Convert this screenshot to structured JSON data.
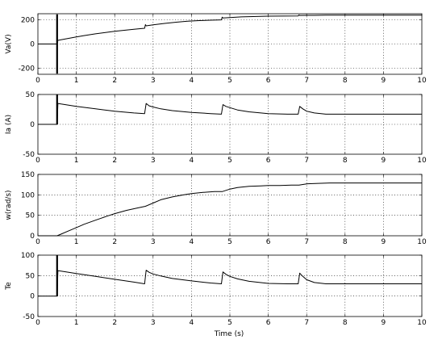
{
  "chart_data": [
    {
      "type": "line",
      "title": "",
      "xlabel": "",
      "ylabel": "Va(V)",
      "xlim": [
        0,
        10
      ],
      "ylim": [
        -250,
        250
      ],
      "xticks": [
        0,
        1,
        2,
        3,
        4,
        5,
        6,
        7,
        8,
        9,
        10
      ],
      "yticks": [
        -200,
        0,
        200
      ],
      "grid": true,
      "series": [
        {
          "x": [
            0,
            0.5,
            0.52,
            0.6,
            0.8,
            1.0,
            1.2,
            1.5,
            1.8,
            2.0,
            2.2,
            2.5,
            2.78,
            2.8,
            2.82,
            3.0,
            3.3,
            3.6,
            3.9,
            4.2,
            4.5,
            4.78,
            4.8,
            4.82,
            5.0,
            5.3,
            5.6,
            6.0,
            6.4,
            6.78,
            6.8,
            6.82,
            7.2,
            7.5,
            8.0,
            8.5,
            9.0,
            9.5,
            10
          ],
          "y": [
            0,
            0,
            30,
            35,
            47,
            58,
            69,
            84,
            97,
            105,
            112,
            122,
            130,
            160,
            150,
            158,
            170,
            180,
            188,
            193,
            197,
            199,
            222,
            215,
            218,
            224,
            227,
            230,
            231,
            232,
            240,
            236,
            237,
            238,
            238,
            238,
            238,
            238,
            238
          ],
          "spikes": [
            {
              "x": 0.5,
              "min": -245,
              "max": 245
            }
          ]
        }
      ]
    },
    {
      "type": "line",
      "title": "",
      "xlabel": "",
      "ylabel": "Ia (A)",
      "xlim": [
        0,
        10
      ],
      "ylim": [
        -50,
        50
      ],
      "xticks": [
        0,
        1,
        2,
        3,
        4,
        5,
        6,
        7,
        8,
        9,
        10
      ],
      "yticks": [
        -50,
        0,
        50
      ],
      "grid": true,
      "series": [
        {
          "x": [
            0,
            0.5,
            0.52,
            0.6,
            0.8,
            1.0,
            1.5,
            2.0,
            2.5,
            2.78,
            2.82,
            2.9,
            3.0,
            3.2,
            3.5,
            4.0,
            4.5,
            4.78,
            4.82,
            4.9,
            5.0,
            5.2,
            5.5,
            6.0,
            6.5,
            6.78,
            6.82,
            6.9,
            7.0,
            7.2,
            7.5,
            8.0,
            9.0,
            10
          ],
          "y": [
            0,
            0,
            35,
            34,
            32,
            30,
            26,
            22,
            19,
            18,
            35,
            31,
            29,
            26,
            23,
            20,
            18,
            17,
            33,
            30,
            28,
            24,
            21,
            18,
            17,
            17,
            30,
            26,
            22,
            19,
            17,
            17,
            17,
            17
          ],
          "spikes": [
            {
              "x": 0.5,
              "min": 0,
              "max": 50
            }
          ]
        }
      ]
    },
    {
      "type": "line",
      "title": "",
      "xlabel": "",
      "ylabel": "w(rad/s)",
      "xlim": [
        0,
        10
      ],
      "ylim": [
        0,
        150
      ],
      "xticks": [
        0,
        1,
        2,
        3,
        4,
        5,
        6,
        7,
        8,
        9,
        10
      ],
      "yticks": [
        0,
        50,
        100,
        150
      ],
      "grid": true,
      "series": [
        {
          "x": [
            0,
            0.5,
            0.6,
            0.8,
            1.0,
            1.2,
            1.5,
            1.8,
            2.0,
            2.3,
            2.6,
            2.8,
            3.0,
            3.2,
            3.5,
            3.8,
            4.0,
            4.3,
            4.6,
            4.8,
            5.0,
            5.2,
            5.5,
            5.8,
            6.0,
            6.3,
            6.6,
            6.8,
            7.0,
            7.3,
            7.6,
            8.0,
            8.5,
            9.0,
            9.5,
            10
          ],
          "y": [
            0,
            0,
            4,
            12,
            20,
            28,
            38,
            48,
            54,
            62,
            68,
            72,
            80,
            88,
            95,
            100,
            103,
            106,
            108,
            108,
            114,
            118,
            121,
            122,
            123,
            123,
            124,
            124,
            127,
            128,
            129,
            129,
            129,
            129,
            129,
            129
          ]
        }
      ]
    },
    {
      "type": "line",
      "title": "",
      "xlabel": "Time (s)",
      "ylabel": "Te",
      "xlim": [
        0,
        10
      ],
      "ylim": [
        -50,
        100
      ],
      "xticks": [
        0,
        1,
        2,
        3,
        4,
        5,
        6,
        7,
        8,
        9,
        10
      ],
      "yticks": [
        -50,
        0,
        50,
        100
      ],
      "grid": true,
      "series": [
        {
          "x": [
            0,
            0.5,
            0.52,
            0.6,
            0.8,
            1.0,
            1.5,
            2.0,
            2.5,
            2.78,
            2.82,
            2.9,
            3.0,
            3.2,
            3.5,
            4.0,
            4.5,
            4.78,
            4.82,
            4.9,
            5.0,
            5.2,
            5.5,
            6.0,
            6.5,
            6.78,
            6.82,
            6.9,
            7.0,
            7.2,
            7.5,
            8.0,
            9.0,
            10
          ],
          "y": [
            0,
            0,
            62,
            61,
            58,
            55,
            48,
            41,
            34,
            30,
            63,
            58,
            54,
            49,
            43,
            37,
            32,
            30,
            59,
            53,
            48,
            42,
            36,
            31,
            30,
            30,
            56,
            48,
            40,
            33,
            30,
            30,
            30,
            30
          ],
          "spikes": [
            {
              "x": 0.5,
              "min": 0,
              "max": 100
            }
          ]
        }
      ]
    }
  ]
}
